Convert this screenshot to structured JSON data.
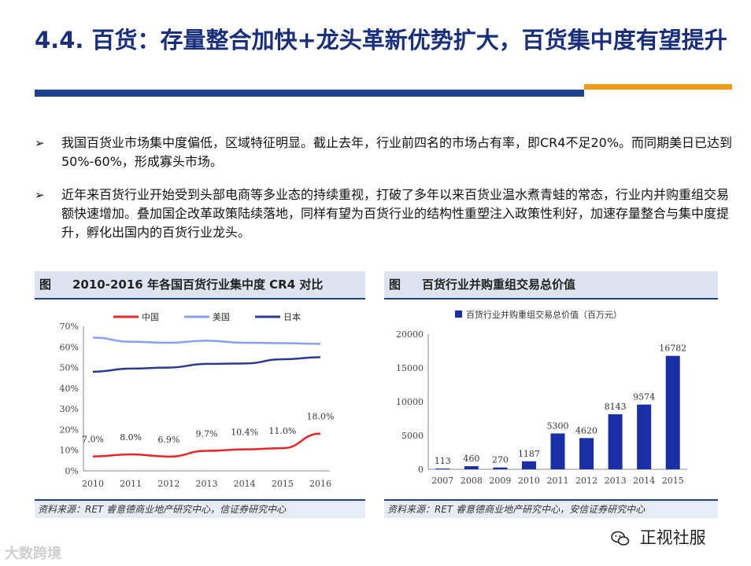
{
  "slide": {
    "title": "4.4. 百货：存量整合加快+龙头革新优势扩大，百货集中度有望提升"
  },
  "bullets": [
    "我国百货业市场集中度偏低，区域特征明显。截止去年，行业前四名的市场占有率，即CR4不足20%。而同期美日已达到50%-60%，形成寡头市场。",
    "近年来百货行业开始受到头部电商等多业态的持续重视，打破了多年以来百货业温水煮青蛙的常态，行业内并购重组交易额快速增加。叠加国企改革政策陆续落地，同样有望为百货行业的结构性重塑注入政策性利好，加速存量整合与集中度提升，孵化出国内的百货行业龙头。"
  ],
  "bullet_symbol": "➢",
  "left_panel": {
    "fig_label": "图",
    "title": "2010-2016 年各国百货行业集中度 CR4 对比",
    "source": "资料来源：RET 睿意德商业地产研究中心，信证券研究中心"
  },
  "right_panel": {
    "fig_label": "图",
    "title": "百货行业并购重组交易总价值",
    "source": "资料来源：RET 睿意德商业地产研究中心，安信证券研究中心"
  },
  "watermarks": {
    "left": "大数跨境",
    "right": "正视社服"
  },
  "chart_data": [
    {
      "type": "line",
      "title": "2010-2016 年各国百货行业集中度 CR4 对比",
      "x": [
        "2010",
        "2011",
        "2012",
        "2013",
        "2014",
        "2015",
        "2016"
      ],
      "ylim": [
        0,
        70
      ],
      "y_ticks": [
        "0%",
        "10%",
        "20%",
        "30%",
        "40%",
        "50%",
        "60%",
        "70%"
      ],
      "legend_position": "top",
      "series": [
        {
          "name": "中国",
          "color": "#e8262a",
          "values": [
            7.0,
            8.0,
            6.9,
            9.7,
            10.4,
            11.0,
            18.0
          ],
          "labels": [
            "7.0%",
            "8.0%",
            "6.9%",
            "9.7%",
            "10.4%",
            "11.0%",
            "18.0%"
          ]
        },
        {
          "name": "美国",
          "color": "#8b9ff2",
          "values": [
            64.5,
            62.5,
            62.0,
            63.0,
            62.0,
            61.8,
            61.5
          ]
        },
        {
          "name": "日本",
          "color": "#2b3990",
          "values": [
            48.0,
            49.5,
            50.0,
            51.8,
            52.0,
            54.0,
            55.0
          ]
        }
      ]
    },
    {
      "type": "bar",
      "title": "百货行业并购重组交易总价值",
      "legend": "百货行业并购重组交易总价值（百万元）",
      "color": "#1a2ea6",
      "categories": [
        "2007",
        "2008",
        "2009",
        "2010",
        "2011",
        "2012",
        "2013",
        "2014",
        "2015"
      ],
      "values": [
        113,
        460,
        270,
        1187,
        5300,
        4620,
        8143,
        9574,
        16782
      ],
      "labels": [
        "113",
        "460",
        "270",
        "1187",
        "5300",
        "4620",
        "8143",
        "9574",
        "16782"
      ],
      "ylim": [
        0,
        20000
      ],
      "y_ticks": [
        "0",
        "5000",
        "10000",
        "15000",
        "20000"
      ]
    }
  ]
}
